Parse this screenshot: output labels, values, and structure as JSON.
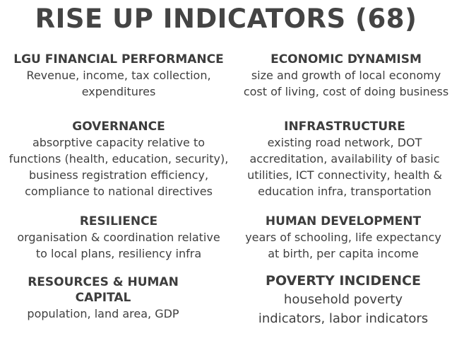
{
  "title": "RISE UP INDICATORS (68)",
  "indicators": {
    "lgu_financial": {
      "heading": "LGU FINANCIAL PERFORMANCE",
      "lines": [
        "Revenue, income, tax collection,",
        "expenditures"
      ]
    },
    "economic_dynamism": {
      "heading": "ECONOMIC DYNAMISM",
      "lines": [
        "size and growth of local economy",
        "cost of living, cost of doing business"
      ]
    },
    "governance": {
      "heading": "GOVERNANCE",
      "lines": [
        "absorptive capacity relative to",
        "functions (health, education, security),",
        "business registration efficiency,",
        "compliance to national directives"
      ]
    },
    "infrastructure": {
      "heading": "INFRASTRUCTURE",
      "lines": [
        "existing road network, DOT",
        "accreditation, availability of basic",
        "utilities, ICT connectivity, health &",
        "education infra, transportation"
      ]
    },
    "resilience": {
      "heading": "RESILIENCE",
      "lines": [
        "organisation & coordination relative",
        "to local plans, resiliency infra"
      ]
    },
    "human_development": {
      "heading": "HUMAN DEVELOPMENT",
      "lines": [
        "years of schooling, life expectancy",
        "at birth, per capita income"
      ]
    },
    "resources_human_capital": {
      "heading_lines": [
        "RESOURCES & HUMAN",
        "CAPITAL"
      ],
      "lines": [
        "population, land area, GDP"
      ]
    },
    "poverty_incidence": {
      "heading": "POVERTY INCIDENCE",
      "lines": [
        "household poverty",
        "indicators, labor indicators"
      ]
    }
  }
}
